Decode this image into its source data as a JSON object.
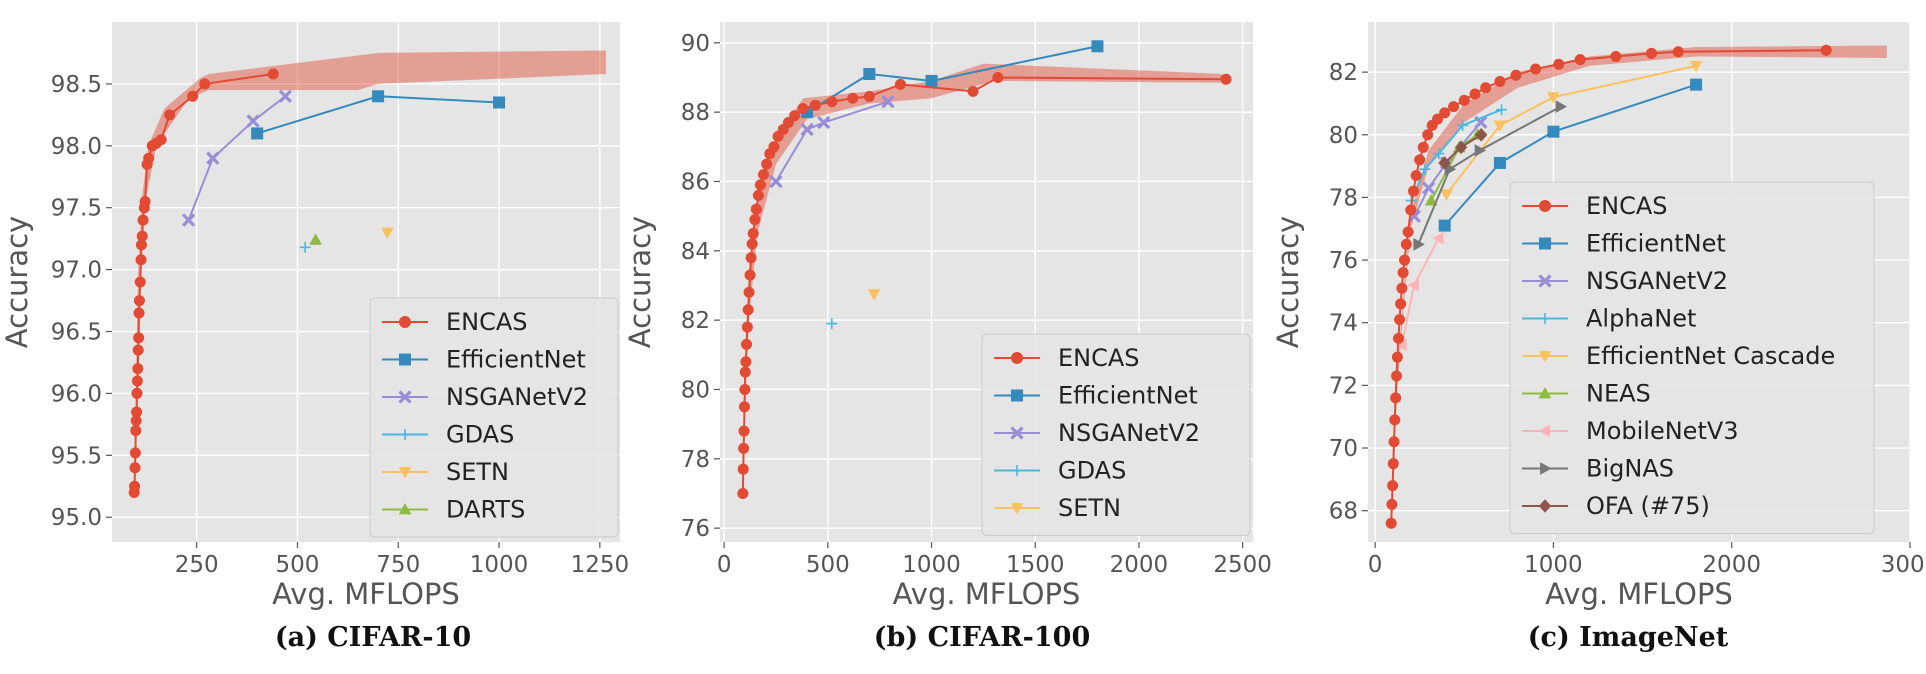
{
  "chart_data": [
    {
      "type": "line",
      "caption": "(a) CIFAR-10",
      "xlabel": "Avg. MFLOPS",
      "ylabel": "Accuracy",
      "xlim": [
        40,
        1300
      ],
      "ylim": [
        94.8,
        99.0
      ],
      "xticks": [
        250,
        500,
        750,
        1000,
        1250
      ],
      "yticks": [
        95.0,
        95.5,
        96.0,
        96.5,
        97.0,
        97.5,
        98.0,
        98.5
      ],
      "grid": true,
      "legend_position": "lower-right",
      "band": {
        "upper": [
          [
            95,
            95.2
          ],
          [
            100,
            96.2
          ],
          [
            105,
            97.0
          ],
          [
            115,
            97.6
          ],
          [
            130,
            98.0
          ],
          [
            170,
            98.3
          ],
          [
            260,
            98.55
          ],
          [
            280,
            98.58
          ],
          [
            700,
            98.75
          ],
          [
            1265,
            98.77
          ]
        ],
        "lower": [
          [
            1265,
            98.58
          ],
          [
            700,
            98.5
          ],
          [
            650,
            98.45
          ],
          [
            280,
            98.45
          ],
          [
            230,
            98.38
          ],
          [
            150,
            98.0
          ],
          [
            120,
            97.5
          ],
          [
            108,
            96.8
          ],
          [
            100,
            95.8
          ],
          [
            95,
            95.2
          ]
        ]
      },
      "series": [
        {
          "name": "ENCAS",
          "color": "#e24a33",
          "marker": "circle",
          "points": [
            [
              95,
              95.2
            ],
            [
              96,
              95.25
            ],
            [
              97,
              95.4
            ],
            [
              98,
              95.52
            ],
            [
              99,
              95.7
            ],
            [
              100,
              95.78
            ],
            [
              101,
              95.85
            ],
            [
              102,
              96.0
            ],
            [
              103,
              96.1
            ],
            [
              104,
              96.2
            ],
            [
              105,
              96.35
            ],
            [
              106,
              96.45
            ],
            [
              107,
              96.65
            ],
            [
              108,
              96.75
            ],
            [
              110,
              96.9
            ],
            [
              112,
              97.08
            ],
            [
              113,
              97.2
            ],
            [
              115,
              97.27
            ],
            [
              117,
              97.4
            ],
            [
              120,
              97.5
            ],
            [
              122,
              97.55
            ],
            [
              127,
              97.85
            ],
            [
              131,
              97.9
            ],
            [
              140,
              98.0
            ],
            [
              150,
              98.02
            ],
            [
              162,
              98.05
            ],
            [
              183,
              98.25
            ],
            [
              240,
              98.4
            ],
            [
              270,
              98.5
            ],
            [
              440,
              98.58
            ]
          ]
        },
        {
          "name": "EfficientNet",
          "color": "#348abd",
          "marker": "square",
          "points": [
            [
              400,
              98.1
            ],
            [
              700,
              98.4
            ],
            [
              1000,
              98.35
            ]
          ]
        },
        {
          "name": "NSGANetV2",
          "color": "#988ed5",
          "marker": "x",
          "points": [
            [
              230,
              97.4
            ],
            [
              290,
              97.9
            ],
            [
              390,
              98.2
            ],
            [
              470,
              98.4
            ]
          ]
        },
        {
          "name": "GDAS",
          "color": "#49b8e0",
          "marker": "plus",
          "points": [
            [
              519,
              97.18
            ]
          ]
        },
        {
          "name": "SETN",
          "color": "#fbc15e",
          "marker": "triangle-down",
          "points": [
            [
              723,
              97.3
            ]
          ]
        },
        {
          "name": "DARTS",
          "color": "#8eba42",
          "marker": "triangle-up",
          "points": [
            [
              545,
              97.24
            ]
          ]
        }
      ]
    },
    {
      "type": "line",
      "caption": "(b) CIFAR-100",
      "xlabel": "Avg. MFLOPS",
      "ylabel": "Accuracy",
      "xlim": [
        -20,
        2550
      ],
      "ylim": [
        75.6,
        90.6
      ],
      "xticks": [
        0,
        500,
        1000,
        1500,
        2000,
        2500
      ],
      "yticks": [
        76,
        78,
        80,
        82,
        84,
        86,
        88,
        90
      ],
      "grid": true,
      "legend_position": "lower-right",
      "band": {
        "upper": [
          [
            90,
            77.8
          ],
          [
            100,
            80.5
          ],
          [
            120,
            83.5
          ],
          [
            160,
            85.5
          ],
          [
            250,
            87.2
          ],
          [
            380,
            88.4
          ],
          [
            700,
            88.6
          ],
          [
            1000,
            88.9
          ],
          [
            1250,
            89.4
          ],
          [
            2400,
            89.1
          ]
        ],
        "lower": [
          [
            2400,
            88.85
          ],
          [
            1300,
            88.9
          ],
          [
            1000,
            88.4
          ],
          [
            700,
            88.25
          ],
          [
            400,
            87.8
          ],
          [
            250,
            86.5
          ],
          [
            160,
            84.5
          ],
          [
            120,
            82.0
          ],
          [
            100,
            79.5
          ],
          [
            90,
            77.5
          ]
        ]
      },
      "series": [
        {
          "name": "ENCAS",
          "color": "#e24a33",
          "marker": "circle",
          "points": [
            [
              90,
              77.0
            ],
            [
              92,
              77.7
            ],
            [
              94,
              78.3
            ],
            [
              96,
              78.8
            ],
            [
              98,
              79.5
            ],
            [
              100,
              80.0
            ],
            [
              102,
              80.5
            ],
            [
              105,
              80.8
            ],
            [
              108,
              81.3
            ],
            [
              112,
              81.8
            ],
            [
              116,
              82.3
            ],
            [
              120,
              82.8
            ],
            [
              125,
              83.3
            ],
            [
              130,
              83.8
            ],
            [
              135,
              84.2
            ],
            [
              140,
              84.5
            ],
            [
              148,
              84.9
            ],
            [
              155,
              85.2
            ],
            [
              165,
              85.6
            ],
            [
              175,
              85.9
            ],
            [
              190,
              86.2
            ],
            [
              205,
              86.5
            ],
            [
              220,
              86.8
            ],
            [
              240,
              87.0
            ],
            [
              260,
              87.3
            ],
            [
              285,
              87.5
            ],
            [
              310,
              87.7
            ],
            [
              340,
              87.9
            ],
            [
              380,
              88.1
            ],
            [
              440,
              88.2
            ],
            [
              520,
              88.3
            ],
            [
              620,
              88.4
            ],
            [
              700,
              88.45
            ],
            [
              850,
              88.8
            ],
            [
              1200,
              88.6
            ],
            [
              1320,
              89.0
            ],
            [
              2420,
              88.95
            ]
          ]
        },
        {
          "name": "EfficientNet",
          "color": "#348abd",
          "marker": "square",
          "points": [
            [
              400,
              88.0
            ],
            [
              700,
              89.1
            ],
            [
              1000,
              88.9
            ],
            [
              1800,
              89.9
            ]
          ]
        },
        {
          "name": "NSGANetV2",
          "color": "#988ed5",
          "marker": "x",
          "points": [
            [
              250,
              86.0
            ],
            [
              400,
              87.5
            ],
            [
              480,
              87.7
            ],
            [
              790,
              88.3
            ]
          ]
        },
        {
          "name": "GDAS",
          "color": "#49b8e0",
          "marker": "plus",
          "points": [
            [
              519,
              81.9
            ]
          ]
        },
        {
          "name": "SETN",
          "color": "#fbc15e",
          "marker": "triangle-down",
          "points": [
            [
              723,
              82.75
            ]
          ]
        }
      ]
    },
    {
      "type": "line",
      "caption": "(c) ImageNet",
      "xlabel": "Avg. MFLOPS",
      "ylabel": "Accuracy",
      "xlim": [
        -40,
        3000
      ],
      "ylim": [
        67.0,
        83.6
      ],
      "xticks": [
        0,
        1000,
        2000,
        3000
      ],
      "yticks": [
        68,
        70,
        72,
        74,
        76,
        78,
        80,
        82
      ],
      "grid": true,
      "legend_position": "lower-right",
      "band": {
        "upper": [
          [
            90,
            67.6
          ],
          [
            120,
            72.0
          ],
          [
            160,
            75.0
          ],
          [
            200,
            77.5
          ],
          [
            300,
            79.5
          ],
          [
            500,
            81.0
          ],
          [
            800,
            82.0
          ],
          [
            1200,
            82.5
          ],
          [
            1800,
            82.8
          ],
          [
            2870,
            82.85
          ]
        ],
        "lower": [
          [
            2870,
            82.45
          ],
          [
            1800,
            82.5
          ],
          [
            1200,
            82.2
          ],
          [
            800,
            81.5
          ],
          [
            500,
            80.4
          ],
          [
            300,
            79.0
          ],
          [
            200,
            77.0
          ],
          [
            160,
            74.5
          ],
          [
            120,
            71.5
          ],
          [
            90,
            67.6
          ]
        ]
      },
      "series": [
        {
          "name": "ENCAS",
          "color": "#e24a33",
          "marker": "circle",
          "points": [
            [
              90,
              67.6
            ],
            [
              94,
              68.2
            ],
            [
              98,
              68.8
            ],
            [
              102,
              69.5
            ],
            [
              106,
              70.2
            ],
            [
              110,
              70.9
            ],
            [
              115,
              71.6
            ],
            [
              120,
              72.3
            ],
            [
              125,
              72.9
            ],
            [
              131,
              73.5
            ],
            [
              137,
              74.1
            ],
            [
              143,
              74.6
            ],
            [
              150,
              75.1
            ],
            [
              157,
              75.6
            ],
            [
              165,
              76.0
            ],
            [
              175,
              76.5
            ],
            [
              185,
              76.9
            ],
            [
              200,
              77.6
            ],
            [
              215,
              78.2
            ],
            [
              230,
              78.7
            ],
            [
              250,
              79.2
            ],
            [
              270,
              79.6
            ],
            [
              295,
              80.0
            ],
            [
              320,
              80.3
            ],
            [
              350,
              80.5
            ],
            [
              390,
              80.7
            ],
            [
              440,
              80.9
            ],
            [
              500,
              81.1
            ],
            [
              560,
              81.3
            ],
            [
              620,
              81.5
            ],
            [
              700,
              81.7
            ],
            [
              790,
              81.9
            ],
            [
              900,
              82.1
            ],
            [
              1030,
              82.25
            ],
            [
              1150,
              82.4
            ],
            [
              1350,
              82.5
            ],
            [
              1550,
              82.6
            ],
            [
              1700,
              82.65
            ],
            [
              2530,
              82.7
            ]
          ]
        },
        {
          "name": "EfficientNet",
          "color": "#348abd",
          "marker": "square",
          "points": [
            [
              390,
              77.1
            ],
            [
              700,
              79.1
            ],
            [
              1000,
              80.1
            ],
            [
              1800,
              81.6
            ]
          ]
        },
        {
          "name": "NSGANetV2",
          "color": "#988ed5",
          "marker": "x",
          "points": [
            [
              220,
              77.4
            ],
            [
              300,
              78.3
            ],
            [
              400,
              79.1
            ],
            [
              593,
              80.4
            ]
          ]
        },
        {
          "name": "AlphaNet",
          "color": "#49b8e0",
          "marker": "plus",
          "points": [
            [
              203,
              77.9
            ],
            [
              279,
              78.9
            ],
            [
              357,
              79.4
            ],
            [
              491,
              80.3
            ],
            [
              709,
              80.8
            ]
          ]
        },
        {
          "name": "EfficientNet Cascade",
          "color": "#fbc15e",
          "marker": "triangle-down",
          "points": [
            [
              400,
              78.1
            ],
            [
              700,
              80.3
            ],
            [
              1000,
              81.2
            ],
            [
              1800,
              82.2
            ]
          ]
        },
        {
          "name": "NEAS",
          "color": "#8eba42",
          "marker": "triangle-up",
          "points": [
            [
              314,
              77.9
            ],
            [
              472,
              79.6
            ],
            [
              574,
              80.0
            ]
          ]
        },
        {
          "name": "MobileNetV3",
          "color": "#ffb5b8",
          "marker": "triangle-left",
          "points": [
            [
              150,
              73.3
            ],
            [
              219,
              75.2
            ],
            [
              356,
              76.7
            ]
          ]
        },
        {
          "name": "BigNAS",
          "color": "#777777",
          "marker": "triangle-right",
          "points": [
            [
              242,
              76.5
            ],
            [
              418,
              78.9
            ],
            [
              586,
              79.5
            ],
            [
              1040,
              80.9
            ]
          ]
        },
        {
          "name": "OFA (#75)",
          "color": "#8c564b",
          "marker": "diamond",
          "points": [
            [
              389,
              79.1
            ],
            [
              482,
              79.6
            ],
            [
              595,
              80.0
            ]
          ]
        }
      ]
    }
  ]
}
